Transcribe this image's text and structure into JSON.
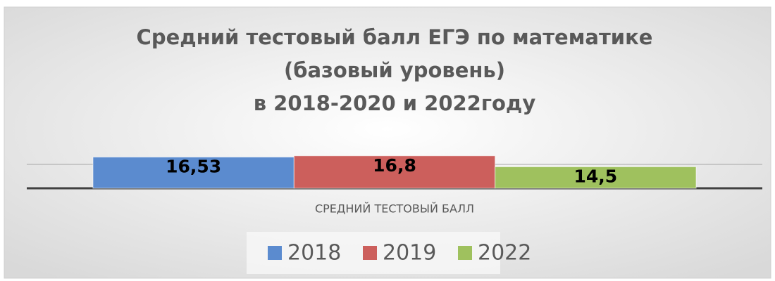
{
  "chart_data": {
    "type": "bar",
    "title": [
      "Средний тестовый балл ЕГЭ по математике",
      "(базовый уровень)",
      "в 2018-2020 и 2022году"
    ],
    "categories": [
      "СРЕДНИЙ ТЕСТОВЫЙ БАЛЛ"
    ],
    "series": [
      {
        "name": "2018",
        "color": "#5b8bcf",
        "values": [
          16.53
        ],
        "value_labels": [
          "16,53"
        ]
      },
      {
        "name": "2019",
        "color": "#cc5f5c",
        "values": [
          16.8
        ],
        "value_labels": [
          "16,8"
        ]
      },
      {
        "name": "2022",
        "color": "#9fc15e",
        "values": [
          14.5
        ],
        "value_labels": [
          "14,5"
        ]
      }
    ],
    "ylim": [
      10,
      17
    ],
    "yticks": [
      10,
      15
    ],
    "grid": true,
    "legend": "bottom"
  }
}
